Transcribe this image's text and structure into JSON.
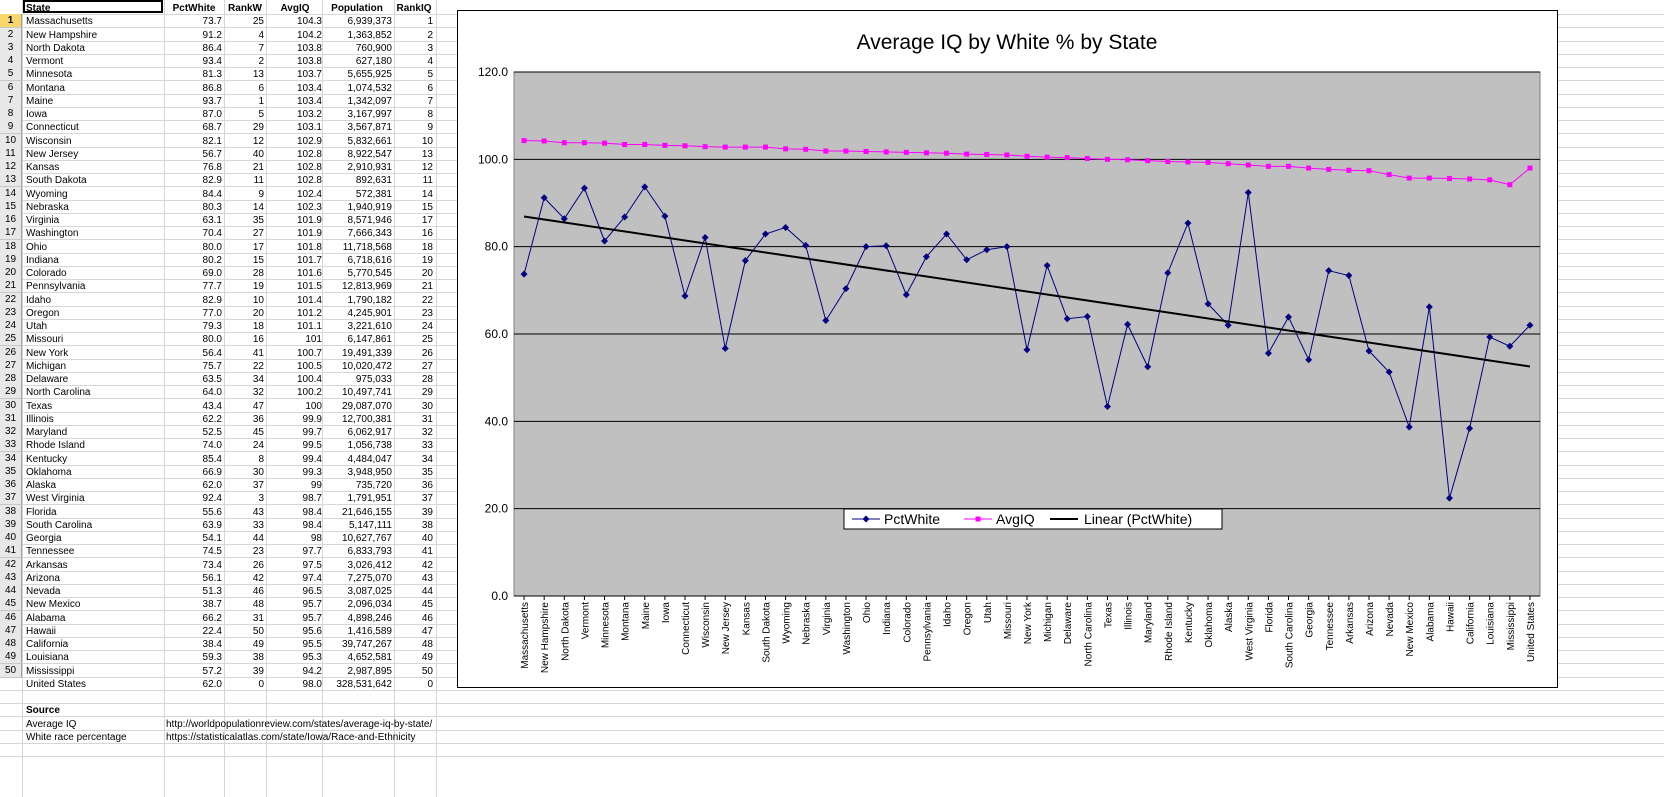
{
  "sheet": {
    "headers": [
      "State",
      "PctWhite",
      "RankW",
      "AvgIQ",
      "Population",
      "RankIQ"
    ],
    "rows": [
      [
        "Massachusetts",
        "73.7",
        "25",
        "104.3",
        "6,939,373",
        "1"
      ],
      [
        "New Hampshire",
        "91.2",
        "4",
        "104.2",
        "1,363,852",
        "2"
      ],
      [
        "North Dakota",
        "86.4",
        "7",
        "103.8",
        "760,900",
        "3"
      ],
      [
        "Vermont",
        "93.4",
        "2",
        "103.8",
        "627,180",
        "4"
      ],
      [
        "Minnesota",
        "81.3",
        "13",
        "103.7",
        "5,655,925",
        "5"
      ],
      [
        "Montana",
        "86.8",
        "6",
        "103.4",
        "1,074,532",
        "6"
      ],
      [
        "Maine",
        "93.7",
        "1",
        "103.4",
        "1,342,097",
        "7"
      ],
      [
        "Iowa",
        "87.0",
        "5",
        "103.2",
        "3,167,997",
        "8"
      ],
      [
        "Connecticut",
        "68.7",
        "29",
        "103.1",
        "3,567,871",
        "9"
      ],
      [
        "Wisconsin",
        "82.1",
        "12",
        "102.9",
        "5,832,661",
        "10"
      ],
      [
        "New Jersey",
        "56.7",
        "40",
        "102.8",
        "8,922,547",
        "13"
      ],
      [
        "Kansas",
        "76.8",
        "21",
        "102.8",
        "2,910,931",
        "12"
      ],
      [
        "South Dakota",
        "82.9",
        "11",
        "102.8",
        "892,631",
        "11"
      ],
      [
        "Wyoming",
        "84.4",
        "9",
        "102.4",
        "572,381",
        "14"
      ],
      [
        "Nebraska",
        "80.3",
        "14",
        "102.3",
        "1,940,919",
        "15"
      ],
      [
        "Virginia",
        "63.1",
        "35",
        "101.9",
        "8,571,946",
        "17"
      ],
      [
        "Washington",
        "70.4",
        "27",
        "101.9",
        "7,666,343",
        "16"
      ],
      [
        "Ohio",
        "80.0",
        "17",
        "101.8",
        "11,718,568",
        "18"
      ],
      [
        "Indiana",
        "80.2",
        "15",
        "101.7",
        "6,718,616",
        "19"
      ],
      [
        "Colorado",
        "69.0",
        "28",
        "101.6",
        "5,770,545",
        "20"
      ],
      [
        "Pennsylvania",
        "77.7",
        "19",
        "101.5",
        "12,813,969",
        "21"
      ],
      [
        "Idaho",
        "82.9",
        "10",
        "101.4",
        "1,790,182",
        "22"
      ],
      [
        "Oregon",
        "77.0",
        "20",
        "101.2",
        "4,245,901",
        "23"
      ],
      [
        "Utah",
        "79.3",
        "18",
        "101.1",
        "3,221,610",
        "24"
      ],
      [
        "Missouri",
        "80.0",
        "16",
        "101",
        "6,147,861",
        "25"
      ],
      [
        "New York",
        "56.4",
        "41",
        "100.7",
        "19,491,339",
        "26"
      ],
      [
        "Michigan",
        "75.7",
        "22",
        "100.5",
        "10,020,472",
        "27"
      ],
      [
        "Delaware",
        "63.5",
        "34",
        "100.4",
        "975,033",
        "28"
      ],
      [
        "North Carolina",
        "64.0",
        "32",
        "100.2",
        "10,497,741",
        "29"
      ],
      [
        "Texas",
        "43.4",
        "47",
        "100",
        "29,087,070",
        "30"
      ],
      [
        "Illinois",
        "62.2",
        "36",
        "99.9",
        "12,700,381",
        "31"
      ],
      [
        "Maryland",
        "52.5",
        "45",
        "99.7",
        "6,062,917",
        "32"
      ],
      [
        "Rhode Island",
        "74.0",
        "24",
        "99.5",
        "1,056,738",
        "33"
      ],
      [
        "Kentucky",
        "85.4",
        "8",
        "99.4",
        "4,484,047",
        "34"
      ],
      [
        "Oklahoma",
        "66.9",
        "30",
        "99.3",
        "3,948,950",
        "35"
      ],
      [
        "Alaska",
        "62.0",
        "37",
        "99",
        "735,720",
        "36"
      ],
      [
        "West Virginia",
        "92.4",
        "3",
        "98.7",
        "1,791,951",
        "37"
      ],
      [
        "Florida",
        "55.6",
        "43",
        "98.4",
        "21,646,155",
        "39"
      ],
      [
        "South Carolina",
        "63.9",
        "33",
        "98.4",
        "5,147,111",
        "38"
      ],
      [
        "Georgia",
        "54.1",
        "44",
        "98",
        "10,627,767",
        "40"
      ],
      [
        "Tennessee",
        "74.5",
        "23",
        "97.7",
        "6,833,793",
        "41"
      ],
      [
        "Arkansas",
        "73.4",
        "26",
        "97.5",
        "3,026,412",
        "42"
      ],
      [
        "Arizona",
        "56.1",
        "42",
        "97.4",
        "7,275,070",
        "43"
      ],
      [
        "Nevada",
        "51.3",
        "46",
        "96.5",
        "3,087,025",
        "44"
      ],
      [
        "New Mexico",
        "38.7",
        "48",
        "95.7",
        "2,096,034",
        "45"
      ],
      [
        "Alabama",
        "66.2",
        "31",
        "95.7",
        "4,898,246",
        "46"
      ],
      [
        "Hawaii",
        "22.4",
        "50",
        "95.6",
        "1,416,589",
        "47"
      ],
      [
        "California",
        "38.4",
        "49",
        "95.5",
        "39,747,267",
        "48"
      ],
      [
        "Louisiana",
        "59.3",
        "38",
        "95.3",
        "4,652,581",
        "49"
      ],
      [
        "Mississippi",
        "57.2",
        "39",
        "94.2",
        "2,987,895",
        "50"
      ]
    ],
    "row_numbers": [
      "1",
      "2",
      "3",
      "4",
      "5",
      "6",
      "7",
      "8",
      "9",
      "10",
      "11",
      "12",
      "13",
      "14",
      "15",
      "16",
      "17",
      "18",
      "19",
      "20",
      "21",
      "22",
      "23",
      "24",
      "25",
      "26",
      "27",
      "28",
      "29",
      "30",
      "31",
      "32",
      "33",
      "34",
      "35",
      "36",
      "37",
      "38",
      "39",
      "40",
      "41",
      "42",
      "43",
      "44",
      "45",
      "46",
      "47",
      "48",
      "49",
      "50"
    ],
    "total_row": [
      "United States",
      "62.0",
      "0",
      "98.0",
      "328,531,642",
      "0"
    ],
    "source_label": "Source",
    "sources": [
      {
        "label": "Average IQ",
        "url": "http://worldpopulationreview.com/states/average-iq-by-state/"
      },
      {
        "label": "White race percentage",
        "url": "https://statisticalatlas.com/state/Iowa/Race-and-Ethnicity"
      }
    ]
  },
  "chart_data": {
    "type": "line",
    "title": "Average IQ by White % by State",
    "xlabel": "",
    "ylabel": "",
    "ylim": [
      0,
      120
    ],
    "yticks": [
      "0.0",
      "20.0",
      "40.0",
      "60.0",
      "80.0",
      "100.0",
      "120.0"
    ],
    "grid": true,
    "legend_position": "bottom-center",
    "categories": [
      "Massachusetts",
      "New Hampshire",
      "North Dakota",
      "Vermont",
      "Minnesota",
      "Montana",
      "Maine",
      "Iowa",
      "Connecticut",
      "Wisconsin",
      "New Jersey",
      "Kansas",
      "South Dakota",
      "Wyoming",
      "Nebraska",
      "Virginia",
      "Washington",
      "Ohio",
      "Indiana",
      "Colorado",
      "Pennsylvania",
      "Idaho",
      "Oregon",
      "Utah",
      "Missouri",
      "New York",
      "Michigan",
      "Delaware",
      "North Carolina",
      "Texas",
      "Illinois",
      "Maryland",
      "Rhode Island",
      "Kentucky",
      "Oklahoma",
      "Alaska",
      "West Virginia",
      "Florida",
      "South Carolina",
      "Georgia",
      "Tennessee",
      "Arkansas",
      "Arizona",
      "Nevada",
      "New Mexico",
      "Alabama",
      "Hawaii",
      "California",
      "Louisiana",
      "Mississippi",
      "United States"
    ],
    "series": [
      {
        "name": "PctWhite",
        "color": "#000080",
        "marker": "diamond",
        "values": [
          73.7,
          91.2,
          86.4,
          93.4,
          81.3,
          86.8,
          93.7,
          87.0,
          68.7,
          82.1,
          56.7,
          76.8,
          82.9,
          84.4,
          80.3,
          63.1,
          70.4,
          80.0,
          80.2,
          69.0,
          77.7,
          82.9,
          77.0,
          79.3,
          80.0,
          56.4,
          75.7,
          63.5,
          64.0,
          43.4,
          62.2,
          52.5,
          74.0,
          85.4,
          66.9,
          62.0,
          92.4,
          55.6,
          63.9,
          54.1,
          74.5,
          73.4,
          56.1,
          51.3,
          38.7,
          66.2,
          22.4,
          38.4,
          59.3,
          57.2,
          62.0
        ]
      },
      {
        "name": "AvgIQ",
        "color": "#ff00ff",
        "marker": "square",
        "values": [
          104.3,
          104.2,
          103.8,
          103.8,
          103.7,
          103.4,
          103.4,
          103.2,
          103.1,
          102.9,
          102.8,
          102.8,
          102.8,
          102.4,
          102.3,
          101.9,
          101.9,
          101.8,
          101.7,
          101.6,
          101.5,
          101.4,
          101.2,
          101.1,
          101,
          100.7,
          100.5,
          100.4,
          100.2,
          100,
          99.9,
          99.7,
          99.5,
          99.4,
          99.3,
          99,
          98.7,
          98.4,
          98.4,
          98,
          97.7,
          97.5,
          97.4,
          96.5,
          95.7,
          95.7,
          95.6,
          95.5,
          95.3,
          94.2,
          98.0
        ]
      },
      {
        "name": "Linear (PctWhite)",
        "color": "#000000",
        "marker": "none",
        "trendline_of": "PctWhite"
      }
    ]
  },
  "colors": {
    "plot_area": "#c0c0c0",
    "pctwhite": "#000080",
    "avgiq": "#ff00ff",
    "trend": "#000000"
  }
}
